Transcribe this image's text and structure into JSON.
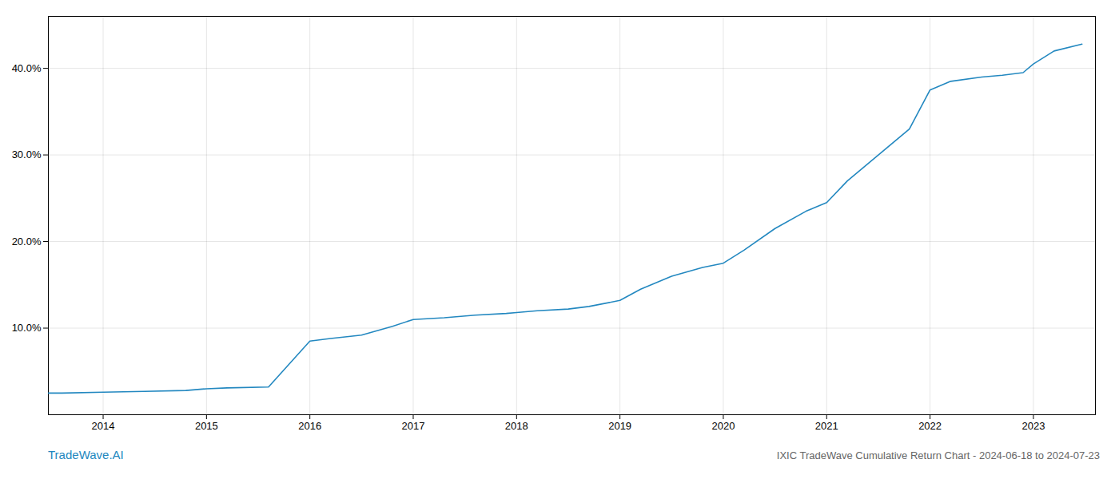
{
  "chart_data": {
    "type": "line",
    "title": "IXIC TradeWave Cumulative Return Chart - 2024-06-18 to 2024-07-23",
    "annotations": [
      {
        "text": "TradeWave.AI"
      }
    ],
    "x": [
      2013.47,
      2013.6,
      2014.0,
      2014.4,
      2014.8,
      2015.0,
      2015.2,
      2015.6,
      2016.0,
      2016.2,
      2016.5,
      2016.8,
      2017.0,
      2017.3,
      2017.6,
      2017.9,
      2018.0,
      2018.2,
      2018.5,
      2018.7,
      2019.0,
      2019.2,
      2019.5,
      2019.8,
      2020.0,
      2020.2,
      2020.5,
      2020.8,
      2021.0,
      2021.2,
      2021.5,
      2021.8,
      2022.0,
      2022.2,
      2022.5,
      2022.7,
      2022.9,
      2023.0,
      2023.2,
      2023.47
    ],
    "values": [
      2.5,
      2.5,
      2.6,
      2.7,
      2.8,
      3.0,
      3.1,
      3.2,
      8.5,
      8.8,
      9.2,
      10.2,
      11.0,
      11.2,
      11.5,
      11.7,
      11.8,
      12.0,
      12.2,
      12.5,
      13.2,
      14.5,
      16.0,
      17.0,
      17.5,
      19.0,
      21.5,
      23.5,
      24.5,
      27.0,
      30.0,
      33.0,
      37.5,
      38.5,
      39.0,
      39.2,
      39.5,
      40.5,
      42.0,
      42.8
    ],
    "color": "#2388c0",
    "xlim": [
      2013.47,
      2023.6
    ],
    "xticks": [
      2014,
      2015,
      2016,
      2017,
      2018,
      2019,
      2020,
      2021,
      2022,
      2023
    ],
    "ylim": [
      0,
      46
    ],
    "yticks": [
      {
        "value": 10.0,
        "label": "10.0%"
      },
      {
        "value": 20.0,
        "label": "20.0%"
      },
      {
        "value": 30.0,
        "label": "30.0%"
      },
      {
        "value": 40.0,
        "label": "40.0%"
      }
    ],
    "grid": true
  }
}
